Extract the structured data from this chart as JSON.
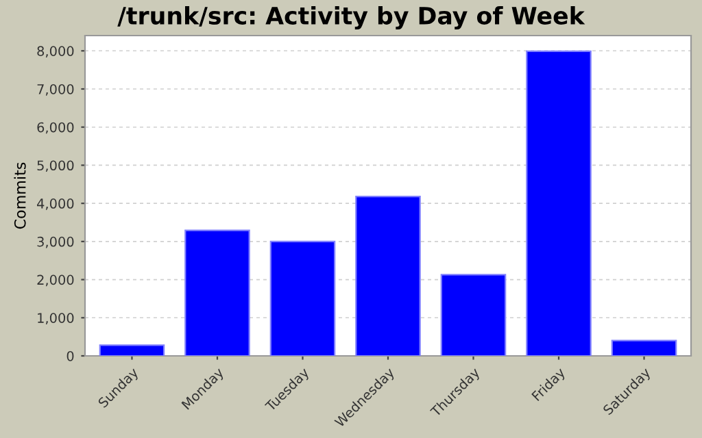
{
  "chart_data": {
    "type": "bar",
    "title": "/trunk/src: Activity by Day of Week",
    "ylabel": "Commits",
    "categories": [
      "Sunday",
      "Monday",
      "Tuesday",
      "Wednesday",
      "Thursday",
      "Friday",
      "Saturday"
    ],
    "values": [
      280,
      3290,
      3000,
      4180,
      2130,
      7990,
      400
    ],
    "color": "#0000ff",
    "ylim": [
      0,
      8400
    ],
    "yticks": [
      {
        "value": 0,
        "label": "0"
      },
      {
        "value": 1000,
        "label": "1,000"
      },
      {
        "value": 2000,
        "label": "2,000"
      },
      {
        "value": 3000,
        "label": "3,000"
      },
      {
        "value": 4000,
        "label": "4,000"
      },
      {
        "value": 5000,
        "label": "5,000"
      },
      {
        "value": 6000,
        "label": "6,000"
      },
      {
        "value": 7000,
        "label": "7,000"
      },
      {
        "value": 8000,
        "label": "8,000"
      }
    ],
    "grid": "y"
  }
}
